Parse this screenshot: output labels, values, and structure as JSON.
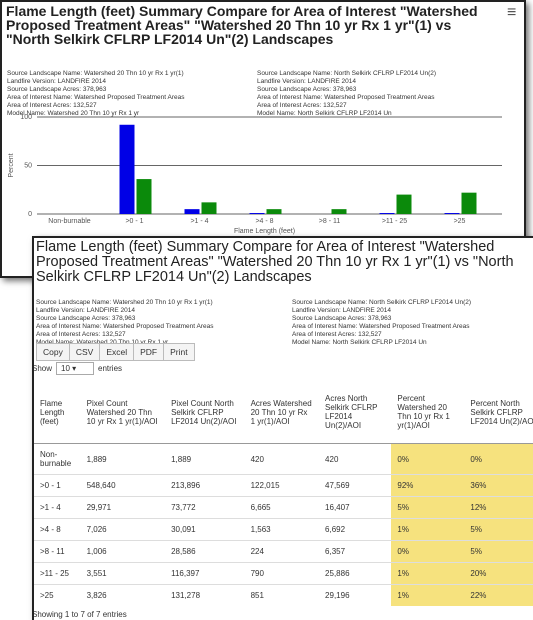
{
  "back_window": {
    "title": "Flame Length (feet) Summary Compare for Area of Interest \"Watershed Proposed Treatment Areas\" \"Watershed 20 Thn 10 yr Rx 1 yr\"(1) vs \"North Selkirk CFLRP LF2014 Un\"(2) Landscapes",
    "info_left": [
      "Source Landscape Name: Watershed 20 Thn 10 yr Rx 1 yr(1)",
      "Landfire Version: LANDFIRE 2014",
      "Source Landscape Acres: 378,963",
      "Area of Interest Name: Watershed Proposed Treatment Areas",
      "Area of Interest Acres: 132,527",
      "Model Name: Watershed 20 Thn 10 yr Rx 1 yr"
    ],
    "info_right": [
      "Source Landscape Name: North Selkirk CFLRP LF2014 Un(2)",
      "Landfire Version: LANDFIRE 2014",
      "Source Landscape Acres: 378,963",
      "Area of Interest Name: Watershed Proposed Treatment Areas",
      "Area of Interest Acres: 132,527",
      "Model Name: North Selkirk CFLRP LF2014 Un"
    ]
  },
  "chart_data": {
    "type": "bar",
    "categories": [
      "Non-burnable",
      ">0 - 1",
      ">1 - 4",
      ">4 - 8",
      ">8 - 11",
      ">11 - 25",
      ">25"
    ],
    "series": [
      {
        "color": "#0000e6",
        "values": [
          0,
          92,
          5,
          1,
          0,
          1,
          1
        ]
      },
      {
        "color": "#0b8a0b",
        "values": [
          0,
          36,
          12,
          5,
          5,
          20,
          22
        ]
      }
    ],
    "ylim": [
      0,
      100
    ],
    "yticks": [
      0,
      50,
      100
    ],
    "ylabel": "Percent",
    "xlabel": "Flame Length (feet)",
    "grid": true
  },
  "table_window": {
    "title": "Flame Length (feet) Summary Compare for Area of Interest \"Watershed Proposed Treatment Areas\" \"Watershed 20 Thn 10 yr Rx 1 yr\"(1) vs \"North Selkirk CFLRP LF2014 Un\"(2) Landscapes",
    "info_left": [
      "Source Landscape Name: Watershed 20 Thn 10 yr Rx 1 yr(1)",
      "Landfire Version: LANDFIRE 2014",
      "Source Landscape Acres: 378,963",
      "Area of Interest Name: Watershed Proposed Treatment Areas",
      "Area of Interest Acres: 132,527",
      "Model Name: Watershed 20 Thn 10 yr Rx 1 yr"
    ],
    "info_right": [
      "Source Landscape Name: North Selkirk CFLRP LF2014 Un(2)",
      "Landfire Version: LANDFIRE 2014",
      "Source Landscape Acres: 378,963",
      "Area of Interest Name: Watershed Proposed Treatment Areas",
      "Area of Interest Acres: 132,527",
      "Model Name: North Selkirk CFLRP LF2014 Un"
    ],
    "buttons": [
      "Copy",
      "CSV",
      "Excel",
      "PDF",
      "Print"
    ],
    "show_label": "Show",
    "page_length": "10",
    "entries_label": "entries",
    "table": {
      "columns": [
        "Flame Length (feet)",
        "Pixel Count Watershed 20 Thn 10 yr Rx 1 yr(1)/AOI",
        "Pixel Count North Selkirk CFLRP LF2014 Un(2)/AOI",
        "Acres Watershed 20 Thn 10 yr Rx 1 yr(1)/AOI",
        "Acres North Selkirk CFLRP LF2014 Un(2)/AOI",
        "Percent Watershed 20 Thn 10 yr Rx 1 yr(1)/AOI",
        "Percent North Selkirk CFLRP LF2014 Un(2)/AOI"
      ],
      "rows": [
        [
          "Non-burnable",
          "1,889",
          "1,889",
          "420",
          "420",
          "0%",
          "0%"
        ],
        [
          ">0 - 1",
          "548,640",
          "213,896",
          "122,015",
          "47,569",
          "92%",
          "36%"
        ],
        [
          ">1 - 4",
          "29,971",
          "73,772",
          "6,665",
          "16,407",
          "5%",
          "12%"
        ],
        [
          ">4 - 8",
          "7,026",
          "30,091",
          "1,563",
          "6,692",
          "1%",
          "5%"
        ],
        [
          ">8 - 11",
          "1,006",
          "28,586",
          "224",
          "6,357",
          "0%",
          "5%"
        ],
        [
          ">11 - 25",
          "3,551",
          "116,397",
          "790",
          "25,886",
          "1%",
          "20%"
        ],
        [
          ">25",
          "3,826",
          "131,278",
          "851",
          "29,196",
          "1%",
          "22%"
        ]
      ]
    },
    "footer": "Showing 1 to 7 of 7 entries"
  }
}
